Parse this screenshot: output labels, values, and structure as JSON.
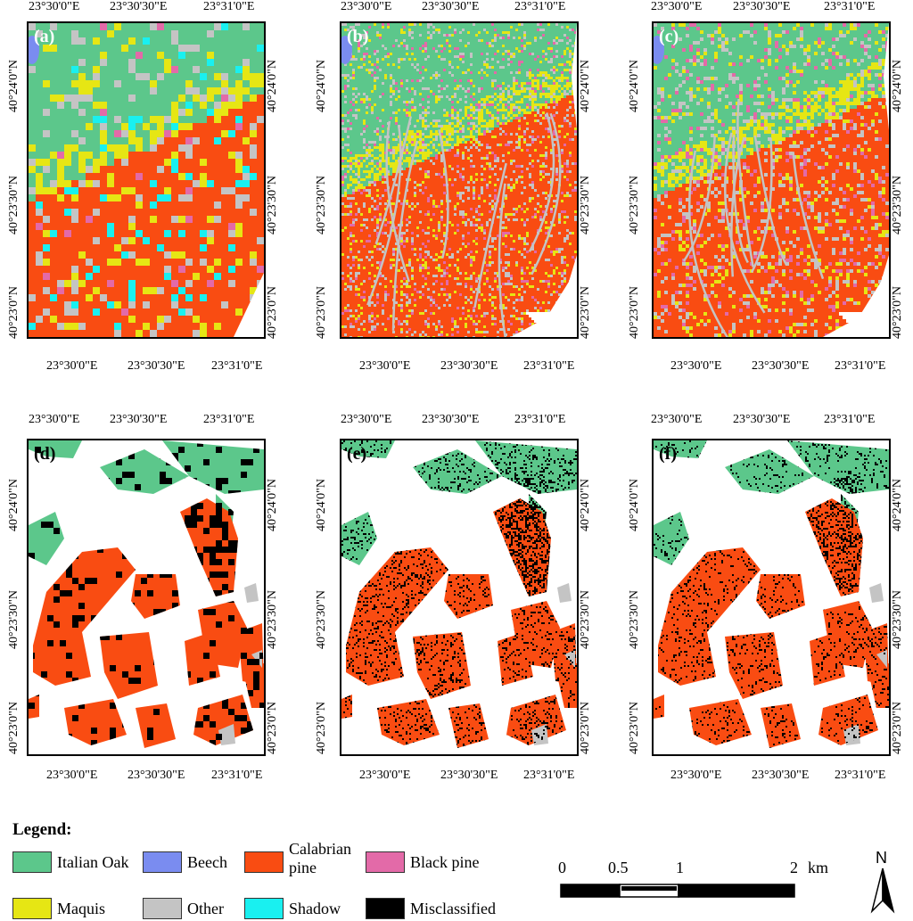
{
  "panels": [
    {
      "label": "(a)",
      "mode": "class"
    },
    {
      "label": "(b)",
      "mode": "class"
    },
    {
      "label": "(c)",
      "mode": "class"
    },
    {
      "label": "(d)",
      "mode": "valid"
    },
    {
      "label": "(e)",
      "mode": "valid"
    },
    {
      "label": "(f)",
      "mode": "valid"
    }
  ],
  "axis": {
    "top_ticks": [
      "23°30'0\"E",
      "23°30'30\"E",
      "23°31'0\"E"
    ],
    "bottom_ticks": [
      "23°30'0\"E",
      "23°30'30\"E",
      "23°31'0\"E"
    ],
    "lat_ticks": [
      "40°24'0\"N",
      "40°23'30\"N",
      "40°23'0\"N"
    ]
  },
  "legend": {
    "title": "Legend:",
    "items": [
      {
        "label": "Italian Oak",
        "color": "#5CC78B"
      },
      {
        "label": "Beech",
        "color": "#7A8CF0"
      },
      {
        "label": "Calabrian pine",
        "line1": "Calabrian",
        "line2": "pine",
        "color": "#F94C12"
      },
      {
        "label": "Black pine",
        "color": "#E36AA8"
      },
      {
        "label": "Maquis",
        "color": "#E6E614"
      },
      {
        "label": "Other",
        "color": "#C4C4C4"
      },
      {
        "label": "Shadow",
        "color": "#19F0F0"
      },
      {
        "label": "Misclassified",
        "color": "#000000"
      }
    ]
  },
  "scale_bar": {
    "labels": [
      "0",
      "0.5",
      "1",
      "2"
    ],
    "unit": "km"
  },
  "north": {
    "label": "N"
  }
}
